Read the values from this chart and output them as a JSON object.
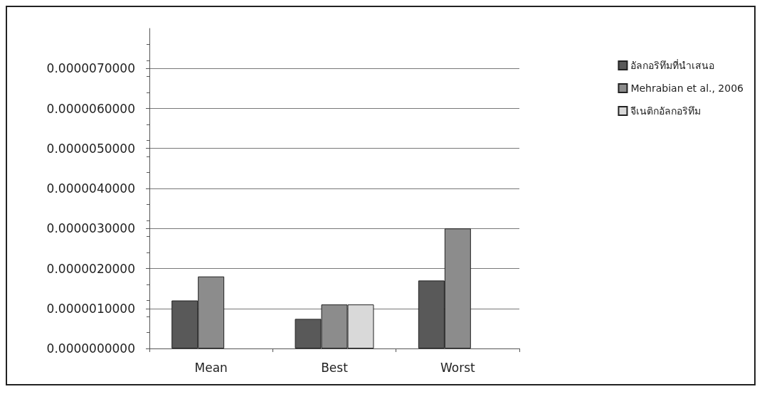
{
  "chart_data": {
    "type": "bar",
    "categories": [
      "Mean",
      "Best",
      "Worst"
    ],
    "series": [
      {
        "name": "อัลกอริทึมที่นำเสนอ",
        "color": "#595959",
        "values": [
          1.2e-06,
          7.4e-07,
          1.7e-06
        ]
      },
      {
        "name": "Mehrabian et al., 2006",
        "color": "#8c8c8c",
        "values": [
          1.8e-06,
          1.1e-06,
          3e-06
        ]
      },
      {
        "name": "จีเนติกอัลกอริทึม",
        "color": "#d9d9d9",
        "values": [
          null,
          1.1e-06,
          null
        ]
      }
    ],
    "ylim": [
      0,
      8e-06
    ],
    "yticks": [
      {
        "value": 0,
        "label": "0.0000000000"
      },
      {
        "value": 1e-06,
        "label": "0.0000010000"
      },
      {
        "value": 2e-06,
        "label": "0.0000020000"
      },
      {
        "value": 3e-06,
        "label": "0.0000030000"
      },
      {
        "value": 4e-06,
        "label": "0.0000040000"
      },
      {
        "value": 5e-06,
        "label": "0.0000050000"
      },
      {
        "value": 6e-06,
        "label": "0.0000060000"
      },
      {
        "value": 7e-06,
        "label": "0.0000070000"
      }
    ],
    "grid": "y",
    "legend": "right"
  }
}
